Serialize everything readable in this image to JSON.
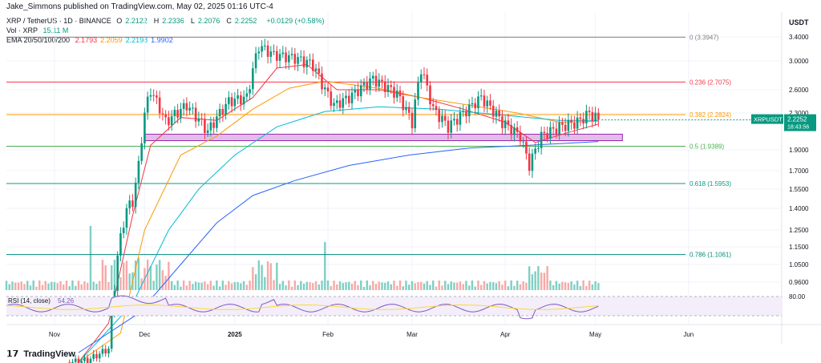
{
  "header": {
    "published": "Jake_Simmons published on TradingView.com, May 02, 2025 01:16 UTC-4"
  },
  "legend": {
    "symbol_line": "XRP / TetherUS · 1D · BINANCE",
    "ohlc": [
      {
        "label": "O",
        "value": "2.2122"
      },
      {
        "label": "H",
        "value": "2.2336"
      },
      {
        "label": "L",
        "value": "2.2076"
      },
      {
        "label": "C",
        "value": "2.2252"
      },
      {
        "label": "",
        "value": "+0.0129 (+0.58%)"
      }
    ],
    "vol_label": "Vol · XRP",
    "vol_value": "15.11 M",
    "ema_label": "EMA 20/50/100/200",
    "ema_values": [
      {
        "value": "2.1793",
        "color": "#f23645"
      },
      {
        "value": "2.2059",
        "color": "#ff9800"
      },
      {
        "value": "2.2198",
        "color": "#00bcd4"
      },
      {
        "value": "1.9902",
        "color": "#2962ff"
      }
    ],
    "rsi_label": "RSI (14, close)",
    "rsi_value": "54.26"
  },
  "brand": "TradingView",
  "chart_data": {
    "type": "candlestick",
    "currency": "USDT",
    "price_ticks": [
      "3.4000",
      "3.0000",
      "2.6000",
      "2.3000",
      "1.9000",
      "1.7000",
      "1.5500",
      "1.4000",
      "1.2500",
      "1.1500",
      "1.0500",
      "0.9600"
    ],
    "price_tick_values": [
      3.4,
      3.0,
      2.6,
      2.3,
      1.9,
      1.7,
      1.55,
      1.4,
      1.25,
      1.15,
      1.05,
      0.96
    ],
    "ylim": [
      0.95,
      3.55
    ],
    "x_labels": [
      {
        "label": "Nov",
        "day": -18
      },
      {
        "label": "Dec",
        "day": 12
      },
      {
        "label": "2025",
        "day": 42
      },
      {
        "label": "Feb",
        "day": 73
      },
      {
        "label": "Mar",
        "day": 101
      },
      {
        "label": "Apr",
        "day": 132
      },
      {
        "label": "May",
        "day": 162
      },
      {
        "label": "Jun",
        "day": 193
      }
    ],
    "x_range": [
      -34,
      224
    ],
    "fib_levels": [
      {
        "ratio": "0",
        "value": 3.3947,
        "label": "0 (3.3947)",
        "color": "#808080"
      },
      {
        "ratio": "0.236",
        "value": 2.7075,
        "label": "0.236 (2.7075)",
        "color": "#f23645"
      },
      {
        "ratio": "0.382",
        "value": 2.2824,
        "label": "0.382 (2.2824)",
        "color": "#ff9800"
      },
      {
        "ratio": "0.5",
        "value": 1.9389,
        "label": "0.5 (1.9389)",
        "color": "#4caf50"
      },
      {
        "ratio": "0.618",
        "value": 1.5953,
        "label": "0.618 (1.5953)",
        "color": "#089981"
      },
      {
        "ratio": "0.786",
        "value": 1.1061,
        "label": "0.786 (1.1061)",
        "color": "#00897b"
      }
    ],
    "support_zone": {
      "from_day": 12,
      "to_day": 171,
      "low": 2.0,
      "high": 2.07
    },
    "last_price": {
      "symbol": "XRPUSDT",
      "price": "2.2252",
      "value": 2.2252,
      "countdown": "18:43:56",
      "color": "#089981"
    },
    "closes_weekly": [
      {
        "day": -14,
        "close": 0.55
      },
      {
        "day": -7,
        "close": 0.56
      },
      {
        "day": 0,
        "close": 0.62
      },
      {
        "day": 3,
        "close": 1.1
      },
      {
        "day": 6,
        "close": 1.4
      },
      {
        "day": 8,
        "close": 1.45
      },
      {
        "day": 10,
        "close": 1.75
      },
      {
        "day": 12,
        "close": 2.3
      },
      {
        "day": 14,
        "close": 2.6
      },
      {
        "day": 19,
        "close": 2.2
      },
      {
        "day": 26,
        "close": 2.4
      },
      {
        "day": 33,
        "close": 2.1
      },
      {
        "day": 40,
        "close": 2.45
      },
      {
        "day": 46,
        "close": 2.5
      },
      {
        "day": 50,
        "close": 3.25
      },
      {
        "day": 55,
        "close": 3.1
      },
      {
        "day": 62,
        "close": 3.05
      },
      {
        "day": 68,
        "close": 2.95
      },
      {
        "day": 72,
        "close": 2.6
      },
      {
        "day": 75,
        "close": 2.4
      },
      {
        "day": 80,
        "close": 2.5
      },
      {
        "day": 88,
        "close": 2.75
      },
      {
        "day": 96,
        "close": 2.55
      },
      {
        "day": 101,
        "close": 2.2
      },
      {
        "day": 104,
        "close": 2.9
      },
      {
        "day": 108,
        "close": 2.35
      },
      {
        "day": 113,
        "close": 2.15
      },
      {
        "day": 118,
        "close": 2.3
      },
      {
        "day": 124,
        "close": 2.5
      },
      {
        "day": 131,
        "close": 2.2
      },
      {
        "day": 137,
        "close": 2.05
      },
      {
        "day": 140,
        "close": 1.75
      },
      {
        "day": 144,
        "close": 2.05
      },
      {
        "day": 150,
        "close": 2.15
      },
      {
        "day": 156,
        "close": 2.2
      },
      {
        "day": 160,
        "close": 2.3
      },
      {
        "day": 163,
        "close": 2.2252
      }
    ],
    "emas": [
      {
        "name": "EMA 20",
        "color": "#f23645",
        "points": [
          [
            -10,
            0.55
          ],
          [
            0,
            0.75
          ],
          [
            8,
            1.35
          ],
          [
            14,
            1.95
          ],
          [
            24,
            2.25
          ],
          [
            36,
            2.22
          ],
          [
            48,
            2.5
          ],
          [
            56,
            2.9
          ],
          [
            66,
            2.95
          ],
          [
            76,
            2.6
          ],
          [
            90,
            2.6
          ],
          [
            104,
            2.5
          ],
          [
            118,
            2.35
          ],
          [
            132,
            2.2
          ],
          [
            142,
            1.98
          ],
          [
            152,
            2.08
          ],
          [
            163,
            2.18
          ]
        ]
      },
      {
        "name": "EMA 50",
        "color": "#ff9800",
        "points": [
          [
            -10,
            0.55
          ],
          [
            4,
            0.7
          ],
          [
            12,
            1.25
          ],
          [
            24,
            1.85
          ],
          [
            36,
            2.05
          ],
          [
            48,
            2.35
          ],
          [
            60,
            2.62
          ],
          [
            72,
            2.72
          ],
          [
            90,
            2.62
          ],
          [
            104,
            2.5
          ],
          [
            120,
            2.4
          ],
          [
            136,
            2.3
          ],
          [
            150,
            2.2
          ],
          [
            163,
            2.21
          ]
        ]
      },
      {
        "name": "EMA 100",
        "color": "#00bcd4",
        "points": [
          [
            -10,
            0.55
          ],
          [
            8,
            0.85
          ],
          [
            20,
            1.25
          ],
          [
            30,
            1.55
          ],
          [
            42,
            1.85
          ],
          [
            56,
            2.15
          ],
          [
            72,
            2.32
          ],
          [
            90,
            2.38
          ],
          [
            110,
            2.35
          ],
          [
            130,
            2.28
          ],
          [
            150,
            2.22
          ],
          [
            163,
            2.22
          ]
        ]
      },
      {
        "name": "EMA 200",
        "color": "#2962ff",
        "points": [
          [
            -10,
            0.6
          ],
          [
            10,
            0.8
          ],
          [
            24,
            1.05
          ],
          [
            36,
            1.3
          ],
          [
            48,
            1.5
          ],
          [
            62,
            1.62
          ],
          [
            80,
            1.75
          ],
          [
            100,
            1.85
          ],
          [
            120,
            1.92
          ],
          [
            140,
            1.95
          ],
          [
            163,
            1.99
          ]
        ]
      }
    ],
    "rsi": {
      "level": "80.00",
      "value": 54.26
    }
  }
}
